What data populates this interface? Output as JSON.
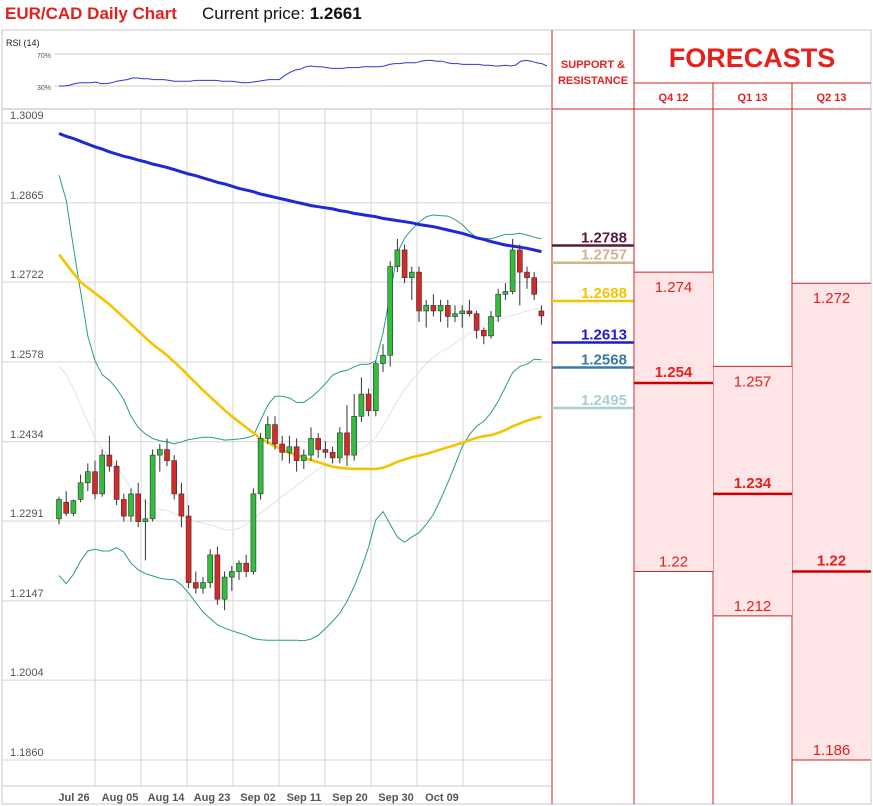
{
  "header": {
    "title": "EUR/CAD Daily Chart",
    "price_label": "Current price:",
    "price_value": "1.2661"
  },
  "rsi_panel": {
    "label": "RSI (14)",
    "levels": [
      "70%",
      "30%"
    ],
    "values": [
      30,
      30,
      31,
      33,
      34,
      34,
      34,
      35,
      33,
      33,
      34,
      36,
      37,
      38,
      40,
      40,
      39,
      39,
      38,
      38,
      38,
      37,
      36,
      36,
      36,
      36,
      37,
      37,
      37,
      37,
      37,
      36,
      36,
      36,
      35,
      34,
      34,
      35,
      36,
      37,
      38,
      38,
      38,
      43,
      47,
      50,
      51,
      54,
      55,
      54,
      54,
      53,
      52,
      52,
      52,
      53,
      53,
      53,
      54,
      54,
      54,
      54,
      55,
      57,
      58,
      58,
      59,
      59,
      59,
      61,
      62,
      62,
      61,
      61,
      59,
      58,
      58,
      57,
      57,
      57,
      57,
      56,
      56,
      55,
      55,
      56,
      55,
      56,
      61,
      62,
      61,
      59,
      58,
      55
    ],
    "color": "#2f35d6"
  },
  "chart_data": {
    "type": "candlestick",
    "title": "EUR/CAD Daily Chart",
    "xlabel": "",
    "ylabel": "",
    "grid": true,
    "ylim": [
      1.186,
      1.3009
    ],
    "y_ticks": [
      "1.3009",
      "1.2865",
      "1.2722",
      "1.2578",
      "1.2434",
      "1.2291",
      "1.2147",
      "1.2004",
      "1.1860"
    ],
    "x_ticks": [
      "Jul 26",
      "Aug 05",
      "Aug 14",
      "Aug 23",
      "Sep 02",
      "Sep 11",
      "Sep 20",
      "Sep 30",
      "Oct 09"
    ],
    "candles": [
      [
        1.2295,
        1.2335,
        1.2285,
        1.233
      ],
      [
        1.2325,
        1.2345,
        1.23,
        1.2305
      ],
      [
        1.2305,
        1.233,
        1.23,
        1.2328
      ],
      [
        1.233,
        1.2375,
        1.2325,
        1.236
      ],
      [
        1.236,
        1.2395,
        1.2345,
        1.238
      ],
      [
        1.238,
        1.24,
        1.233,
        1.234
      ],
      [
        1.234,
        1.242,
        1.2335,
        1.241
      ],
      [
        1.241,
        1.2445,
        1.238,
        1.239
      ],
      [
        1.239,
        1.24,
        1.232,
        1.233
      ],
      [
        1.233,
        1.234,
        1.229,
        1.23
      ],
      [
        1.23,
        1.235,
        1.229,
        1.234
      ],
      [
        1.234,
        1.236,
        1.228,
        1.229
      ],
      [
        1.229,
        1.233,
        1.222,
        1.2295
      ],
      [
        1.2295,
        1.242,
        1.229,
        1.241
      ],
      [
        1.241,
        1.243,
        1.238,
        1.242
      ],
      [
        1.242,
        1.244,
        1.239,
        1.24
      ],
      [
        1.24,
        1.241,
        1.233,
        1.234
      ],
      [
        1.234,
        1.236,
        1.228,
        1.23
      ],
      [
        1.23,
        1.232,
        1.217,
        1.218
      ],
      [
        1.218,
        1.22,
        1.216,
        1.217
      ],
      [
        1.217,
        1.219,
        1.216,
        1.218
      ],
      [
        1.218,
        1.224,
        1.217,
        1.223
      ],
      [
        1.223,
        1.2245,
        1.214,
        1.215
      ],
      [
        1.215,
        1.22,
        1.213,
        1.219
      ],
      [
        1.219,
        1.221,
        1.2165,
        1.22
      ],
      [
        1.22,
        1.222,
        1.2185,
        1.2215
      ],
      [
        1.2215,
        1.223,
        1.219,
        1.22
      ],
      [
        1.22,
        1.235,
        1.2195,
        1.234
      ],
      [
        1.234,
        1.245,
        1.233,
        1.244
      ],
      [
        1.244,
        1.248,
        1.243,
        1.2465
      ],
      [
        1.2465,
        1.248,
        1.242,
        1.243
      ],
      [
        1.243,
        1.2445,
        1.24,
        1.2415
      ],
      [
        1.2415,
        1.2445,
        1.2395,
        1.2425
      ],
      [
        1.2425,
        1.244,
        1.238,
        1.24
      ],
      [
        1.24,
        1.242,
        1.2385,
        1.241
      ],
      [
        1.241,
        1.246,
        1.24,
        1.244
      ],
      [
        1.244,
        1.245,
        1.2405,
        1.242
      ],
      [
        1.242,
        1.2435,
        1.2405,
        1.2415
      ],
      [
        1.2415,
        1.2425,
        1.2395,
        1.2405
      ],
      [
        1.2405,
        1.246,
        1.2395,
        1.245
      ],
      [
        1.245,
        1.25,
        1.239,
        1.241
      ],
      [
        1.241,
        1.252,
        1.24,
        1.248
      ],
      [
        1.248,
        1.255,
        1.247,
        1.252
      ],
      [
        1.252,
        1.253,
        1.248,
        1.249
      ],
      [
        1.249,
        1.258,
        1.248,
        1.2575
      ],
      [
        1.2575,
        1.261,
        1.256,
        1.259
      ],
      [
        1.259,
        1.276,
        1.257,
        1.275
      ],
      [
        1.275,
        1.28,
        1.274,
        1.278
      ],
      [
        1.278,
        1.279,
        1.272,
        1.273
      ],
      [
        1.273,
        1.275,
        1.269,
        1.274
      ],
      [
        1.274,
        1.275,
        1.265,
        1.267
      ],
      [
        1.267,
        1.269,
        1.264,
        1.268
      ],
      [
        1.268,
        1.27,
        1.266,
        1.267
      ],
      [
        1.267,
        1.269,
        1.265,
        1.268
      ],
      [
        1.268,
        1.269,
        1.264,
        1.266
      ],
      [
        1.266,
        1.268,
        1.265,
        1.2665
      ],
      [
        1.2665,
        1.268,
        1.264,
        1.267
      ],
      [
        1.267,
        1.269,
        1.266,
        1.2665
      ],
      [
        1.2665,
        1.267,
        1.262,
        1.2635
      ],
      [
        1.2635,
        1.264,
        1.261,
        1.2625
      ],
      [
        1.2625,
        1.267,
        1.262,
        1.266
      ],
      [
        1.266,
        1.271,
        1.265,
        1.27
      ],
      [
        1.27,
        1.272,
        1.269,
        1.2705
      ],
      [
        1.2705,
        1.28,
        1.27,
        1.278
      ],
      [
        1.278,
        1.279,
        1.268,
        1.274
      ],
      [
        1.274,
        1.275,
        1.271,
        1.273
      ],
      [
        1.273,
        1.274,
        1.269,
        1.27
      ],
      [
        1.267,
        1.268,
        1.2645,
        1.2661
      ]
    ],
    "moving_average_fast": [
      1.2772,
      1.2755,
      1.2738,
      1.2722,
      1.2712,
      1.2702,
      1.2692,
      1.2682,
      1.267,
      1.2658,
      1.2646,
      1.2634,
      1.2622,
      1.261,
      1.26,
      1.259,
      1.2578,
      1.2566,
      1.2553,
      1.254,
      1.2527,
      1.2515,
      1.2503,
      1.2491,
      1.248,
      1.247,
      1.246,
      1.245,
      1.244,
      1.2433,
      1.2426,
      1.242,
      1.2414,
      1.241,
      1.2406,
      1.2401,
      1.2397,
      1.2393,
      1.2389,
      1.2387,
      1.2386,
      1.2385,
      1.2385,
      1.2385,
      1.2385,
      1.2387,
      1.2392,
      1.2398,
      1.2402,
      1.2406,
      1.2409,
      1.2412,
      1.2416,
      1.242,
      1.2424,
      1.2428,
      1.2432,
      1.2437,
      1.2441,
      1.2444,
      1.2446,
      1.245,
      1.2455,
      1.2462,
      1.2467,
      1.2472,
      1.2476,
      1.2479
    ],
    "moving_average_slow": [
      1.299,
      1.2985,
      1.2981,
      1.2976,
      1.2971,
      1.2966,
      1.2962,
      1.2957,
      1.2953,
      1.2949,
      1.2946,
      1.2942,
      1.2939,
      1.2935,
      1.2932,
      1.2929,
      1.2925,
      1.2921,
      1.2917,
      1.2914,
      1.291,
      1.2906,
      1.2902,
      1.2899,
      1.2895,
      1.2891,
      1.2888,
      1.2885,
      1.2881,
      1.2878,
      1.2875,
      1.2872,
      1.2869,
      1.2866,
      1.2863,
      1.286,
      1.2858,
      1.2856,
      1.2854,
      1.2851,
      1.2849,
      1.2846,
      1.2844,
      1.2842,
      1.284,
      1.2837,
      1.2835,
      1.2833,
      1.2831,
      1.2829,
      1.2826,
      1.2824,
      1.2822,
      1.2819,
      1.2816,
      1.2813,
      1.281,
      1.2806,
      1.2802,
      1.2799,
      1.2795,
      1.2792,
      1.2789,
      1.2787,
      1.2785,
      1.2783,
      1.278,
      1.2777
    ],
    "bollinger_upper": [
      1.2915,
      1.287,
      1.2785,
      1.2705,
      1.2625,
      1.258,
      1.2555,
      1.2545,
      1.253,
      1.251,
      1.248,
      1.246,
      1.2448,
      1.244,
      1.2436,
      1.2434,
      1.243,
      1.2434,
      1.2438,
      1.244,
      1.2442,
      1.2442,
      1.244,
      1.2437,
      1.2438,
      1.2439,
      1.2441,
      1.2445,
      1.2473,
      1.25,
      1.2516,
      1.2516,
      1.2513,
      1.2505,
      1.2505,
      1.2514,
      1.2525,
      1.2539,
      1.2554,
      1.256,
      1.2563,
      1.2569,
      1.2574,
      1.2574,
      1.258,
      1.263,
      1.27,
      1.2775,
      1.2801,
      1.2817,
      1.283,
      1.284,
      1.2843,
      1.2842,
      1.2841,
      1.2835,
      1.2826,
      1.2813,
      1.2802,
      1.2801,
      1.28,
      1.2804,
      1.2808,
      1.2808,
      1.281,
      1.2807,
      1.2803,
      1.28
    ],
    "bollinger_middle": [
      1.257,
      1.2555,
      1.253,
      1.25,
      1.247,
      1.244,
      1.242,
      1.2405,
      1.239,
      1.237,
      1.235,
      1.2335,
      1.2325,
      1.2318,
      1.2312,
      1.231,
      1.2305,
      1.23,
      1.2295,
      1.229,
      1.2287,
      1.2284,
      1.228,
      1.2275,
      1.2275,
      1.2278,
      1.2285,
      1.2295,
      1.2305,
      1.2315,
      1.2325,
      1.2335,
      1.2345,
      1.2355,
      1.2365,
      1.2375,
      1.2385,
      1.2392,
      1.2397,
      1.24,
      1.2405,
      1.2412,
      1.242,
      1.243,
      1.2442,
      1.2462,
      1.2485,
      1.2508,
      1.2528,
      1.2545,
      1.256,
      1.2575,
      1.2586,
      1.2596,
      1.2602,
      1.2612,
      1.2621,
      1.263,
      1.2636,
      1.2644,
      1.265,
      1.2654,
      1.2659,
      1.2662,
      1.2666,
      1.267,
      1.2673,
      1.2675
    ],
    "bollinger_lower": [
      1.2193,
      1.2178,
      1.2195,
      1.2219,
      1.2237,
      1.224,
      1.2237,
      1.2237,
      1.2243,
      1.2235,
      1.2215,
      1.2203,
      1.2196,
      1.2192,
      1.2188,
      1.2186,
      1.2185,
      1.2176,
      1.2161,
      1.2144,
      1.2127,
      1.2115,
      1.2104,
      1.2098,
      1.2093,
      1.2089,
      1.2085,
      1.2079,
      1.2077,
      1.2076,
      1.2076,
      1.2076,
      1.2076,
      1.2076,
      1.2075,
      1.2078,
      1.2085,
      1.2097,
      1.211,
      1.2125,
      1.2146,
      1.2173,
      1.2206,
      1.2244,
      1.2293,
      1.2308,
      1.2285,
      1.2262,
      1.2253,
      1.2262,
      1.227,
      1.2285,
      1.2303,
      1.233,
      1.236,
      1.2392,
      1.2425,
      1.2447,
      1.2462,
      1.2471,
      1.2486,
      1.2507,
      1.2533,
      1.2559,
      1.257,
      1.2574,
      1.2583,
      1.2582
    ]
  },
  "support_resistance": {
    "header": [
      "SUPPORT &",
      "RESISTANCE"
    ],
    "levels": [
      {
        "label": "1.2788",
        "value": 1.2788,
        "color": "#5a1a3c"
      },
      {
        "label": "1.2757",
        "value": 1.2757,
        "color": "#d2b48c"
      },
      {
        "label": "1.2688",
        "value": 1.2688,
        "color": "#f5c400"
      },
      {
        "label": "1.2613",
        "value": 1.2613,
        "color": "#1a1adb"
      },
      {
        "label": "1.2568",
        "value": 1.2568,
        "color": "#3a7aa6"
      },
      {
        "label": "1.2495",
        "value": 1.2495,
        "color": "#a9cfd0"
      }
    ]
  },
  "forecasts": {
    "title": "FORECASTS",
    "accent": "#e8201c",
    "columns": [
      {
        "label": "Q4 12",
        "high": "1.274",
        "mid": "1.254",
        "low": "1.22"
      },
      {
        "label": "Q1 13",
        "high": "1.257",
        "mid": "1.234",
        "low": "1.212"
      },
      {
        "label": "Q2 13",
        "high": "1.272",
        "mid": "1.22",
        "low": "1.186"
      }
    ]
  }
}
